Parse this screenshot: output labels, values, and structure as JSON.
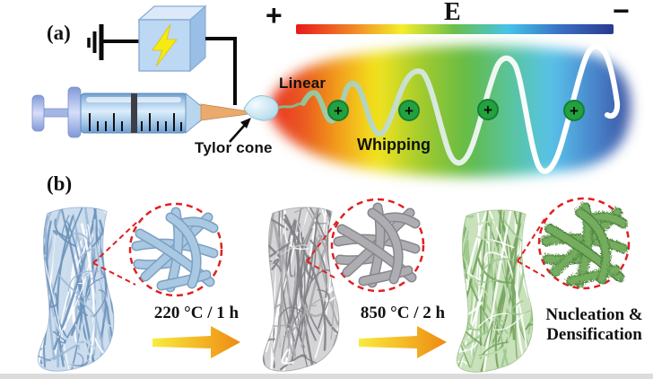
{
  "panel_a": {
    "label": "(a)",
    "field_label": "E",
    "plus_terminal": "+",
    "minus_terminal": "−",
    "linear_label": "Linear",
    "whipping_label": "Whipping",
    "taylor_cone_label": "Tylor cone",
    "charge_symbol": "+",
    "charge_count": 4,
    "colors": {
      "field_bar": [
        "#e8191c",
        "#f07f26",
        "#f5ee2a",
        "#6abf4b",
        "#45c4e8",
        "#3a6fc4",
        "#283b8f"
      ],
      "charge_fill": "#22a13f",
      "charge_ring": "#157f35",
      "jet_start": "#8abc8e",
      "wave": "#ffffff",
      "supply_box": "#bdd8f2",
      "lightning": "#f7ea12",
      "needle": "#eaa96d"
    }
  },
  "panel_b": {
    "label": "(b)",
    "step1_label": "220 °C / 1 h",
    "step2_label": "850 °C / 2 h",
    "final_line1": "Nucleation &",
    "final_line2": "Densification",
    "ring_color": "#e02020",
    "arrow_colors": [
      "#f8ec3d",
      "#ef8a12"
    ],
    "mats": [
      {
        "base": "#9db9d7",
        "dark": "#6e92ba",
        "light": "#c9dbec"
      },
      {
        "base": "#a9a9ad",
        "dark": "#7f7f84",
        "light": "#d2d2d5"
      },
      {
        "base": "#9ec98e",
        "dark": "#74a35e",
        "light": "#c6e0b8"
      }
    ],
    "insets": [
      {
        "main": "#a9c8e2",
        "dark": "#7d9fc2",
        "textured": false
      },
      {
        "main": "#aeaeb2",
        "dark": "#86868c",
        "textured": false
      },
      {
        "main": "#74ad5e",
        "dark": "#4f8440",
        "textured": true
      }
    ]
  }
}
